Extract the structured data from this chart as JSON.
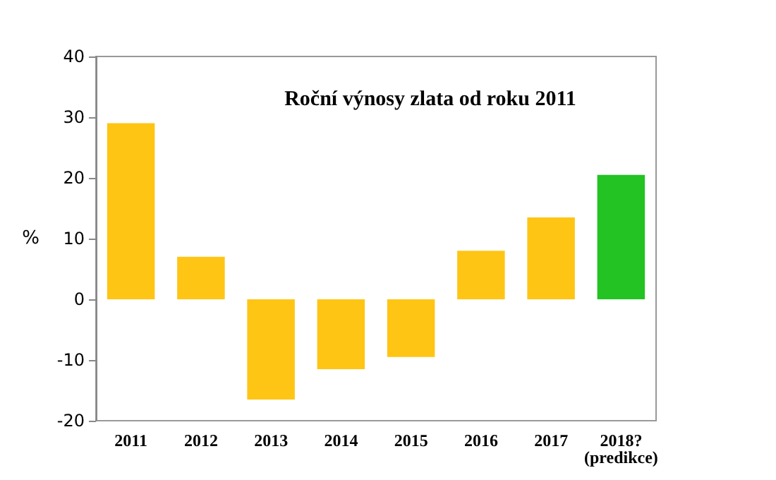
{
  "chart_data": {
    "type": "bar",
    "title": "Roční výnosy zlata od roku 2011",
    "ylabel": "%",
    "categories": [
      "2011",
      "2012",
      "2013",
      "2014",
      "2015",
      "2016",
      "2017",
      "2018?\n(predikce)"
    ],
    "values": [
      29,
      7,
      -16.5,
      -11.5,
      -9.5,
      8,
      13.5,
      20.5
    ],
    "colors": [
      "#ffc514",
      "#ffc514",
      "#ffc514",
      "#ffc514",
      "#ffc514",
      "#ffc514",
      "#ffc514",
      "#22c322"
    ],
    "ylim": [
      -20,
      40
    ],
    "yticks": [
      -20,
      -10,
      0,
      10,
      20,
      30,
      40
    ],
    "grid": false
  }
}
